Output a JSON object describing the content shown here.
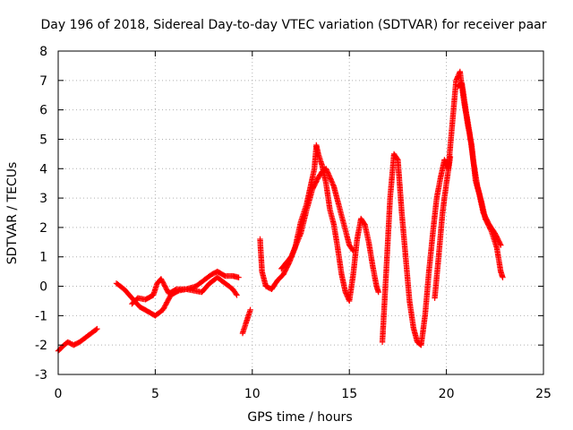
{
  "chart_data": {
    "type": "scatter",
    "title": "Day 196 of 2018, Sidereal Day-to-day VTEC variation (SDTVAR) for receiver paar",
    "xlabel": "GPS time / hours",
    "ylabel": "SDTVAR / TECUs",
    "xlim": [
      0,
      25
    ],
    "ylim": [
      -3,
      8
    ],
    "xticks": [
      "0",
      "5",
      "10",
      "15",
      "20",
      "25"
    ],
    "yticks": [
      "-3",
      "-2",
      "-1",
      "0",
      "1",
      "2",
      "3",
      "4",
      "5",
      "6",
      "7",
      "8"
    ],
    "grid": true,
    "marker": "plus",
    "color": "#ff0000",
    "series": [
      {
        "name": "SDTVAR",
        "segments": [
          {
            "points": [
              [
                0.0,
                -2.2
              ],
              [
                0.3,
                -2.0
              ],
              [
                0.5,
                -1.9
              ],
              [
                0.8,
                -2.0
              ],
              [
                1.1,
                -1.9
              ],
              [
                1.4,
                -1.75
              ],
              [
                1.7,
                -1.6
              ],
              [
                2.0,
                -1.45
              ]
            ]
          },
          {
            "points": [
              [
                3.0,
                0.1
              ],
              [
                3.4,
                -0.1
              ],
              [
                3.8,
                -0.4
              ],
              [
                4.2,
                -0.7
              ],
              [
                4.6,
                -0.85
              ],
              [
                5.0,
                -1.0
              ],
              [
                5.4,
                -0.8
              ],
              [
                5.8,
                -0.3
              ],
              [
                6.2,
                -0.15
              ],
              [
                6.6,
                -0.1
              ],
              [
                7.0,
                -0.15
              ],
              [
                7.4,
                -0.2
              ],
              [
                7.8,
                0.1
              ],
              [
                8.2,
                0.3
              ],
              [
                8.6,
                0.1
              ],
              [
                9.0,
                -0.1
              ],
              [
                9.2,
                -0.3
              ]
            ]
          },
          {
            "points": [
              [
                3.8,
                -0.6
              ],
              [
                4.1,
                -0.4
              ],
              [
                4.5,
                -0.45
              ],
              [
                4.9,
                -0.3
              ],
              [
                5.1,
                0.1
              ],
              [
                5.3,
                0.25
              ],
              [
                5.5,
                0.0
              ],
              [
                5.7,
                -0.25
              ],
              [
                6.1,
                -0.1
              ],
              [
                6.6,
                -0.1
              ],
              [
                7.1,
                0.0
              ],
              [
                7.5,
                0.2
              ],
              [
                7.9,
                0.4
              ],
              [
                8.2,
                0.5
              ],
              [
                8.6,
                0.35
              ],
              [
                9.0,
                0.35
              ],
              [
                9.3,
                0.3
              ]
            ]
          },
          {
            "points": [
              [
                9.5,
                -1.6
              ],
              [
                9.7,
                -1.2
              ],
              [
                9.9,
                -0.8
              ]
            ]
          },
          {
            "points": [
              [
                10.4,
                1.6
              ],
              [
                10.5,
                0.5
              ],
              [
                10.7,
                0.0
              ],
              [
                11.0,
                -0.1
              ],
              [
                11.3,
                0.2
              ],
              [
                11.6,
                0.4
              ],
              [
                11.9,
                0.8
              ],
              [
                12.2,
                1.3
              ],
              [
                12.5,
                2.2
              ],
              [
                12.8,
                2.8
              ],
              [
                13.0,
                3.4
              ],
              [
                13.2,
                4.0
              ],
              [
                13.3,
                4.8
              ],
              [
                13.4,
                4.5
              ],
              [
                13.6,
                4.1
              ],
              [
                13.8,
                3.5
              ],
              [
                14.0,
                2.6
              ],
              [
                14.2,
                2.1
              ],
              [
                14.4,
                1.3
              ],
              [
                14.6,
                0.4
              ],
              [
                14.8,
                -0.2
              ],
              [
                15.0,
                -0.5
              ],
              [
                15.2,
                0.4
              ],
              [
                15.4,
                1.6
              ],
              [
                15.6,
                2.3
              ],
              [
                15.8,
                2.1
              ],
              [
                16.0,
                1.5
              ],
              [
                16.2,
                0.7
              ],
              [
                16.4,
                0.0
              ],
              [
                16.5,
                -0.2
              ]
            ]
          },
          {
            "points": [
              [
                11.5,
                0.6
              ],
              [
                12.0,
                1.0
              ],
              [
                12.5,
                1.8
              ],
              [
                12.8,
                2.6
              ],
              [
                13.1,
                3.3
              ],
              [
                13.4,
                3.7
              ],
              [
                13.6,
                3.9
              ],
              [
                13.8,
                4.0
              ],
              [
                14.0,
                3.7
              ],
              [
                14.2,
                3.4
              ],
              [
                14.4,
                2.9
              ],
              [
                14.6,
                2.4
              ],
              [
                14.8,
                1.9
              ],
              [
                15.0,
                1.4
              ],
              [
                15.2,
                1.2
              ]
            ]
          },
          {
            "points": [
              [
                16.7,
                -1.9
              ],
              [
                16.9,
                0.5
              ],
              [
                17.1,
                3.0
              ],
              [
                17.3,
                4.5
              ],
              [
                17.5,
                4.3
              ],
              [
                17.7,
                2.5
              ],
              [
                17.9,
                1.0
              ],
              [
                18.1,
                -0.5
              ],
              [
                18.3,
                -1.4
              ],
              [
                18.5,
                -1.9
              ],
              [
                18.7,
                -2.0
              ],
              [
                18.9,
                -1.0
              ],
              [
                19.1,
                0.5
              ],
              [
                19.3,
                1.8
              ],
              [
                19.5,
                3.0
              ],
              [
                19.7,
                3.7
              ],
              [
                19.9,
                4.3
              ],
              [
                20.1,
                4.0
              ],
              [
                20.3,
                5.5
              ],
              [
                20.5,
                7.0
              ],
              [
                20.7,
                7.3
              ],
              [
                20.9,
                6.3
              ],
              [
                21.1,
                5.5
              ],
              [
                21.3,
                4.8
              ],
              [
                21.5,
                3.6
              ],
              [
                21.7,
                3.1
              ],
              [
                21.9,
                2.5
              ],
              [
                22.2,
                2.1
              ],
              [
                22.5,
                1.8
              ],
              [
                22.8,
                1.4
              ]
            ]
          },
          {
            "points": [
              [
                19.4,
                -0.4
              ],
              [
                19.6,
                1.0
              ],
              [
                19.8,
                2.5
              ],
              [
                20.0,
                3.5
              ],
              [
                20.2,
                4.4
              ]
            ]
          },
          {
            "points": [
              [
                20.6,
                6.8
              ],
              [
                20.8,
                6.9
              ],
              [
                21.0,
                6.0
              ],
              [
                21.2,
                5.2
              ],
              [
                21.4,
                4.2
              ],
              [
                21.6,
                3.4
              ],
              [
                21.8,
                2.9
              ],
              [
                22.0,
                2.3
              ],
              [
                22.3,
                1.9
              ],
              [
                22.6,
                1.3
              ],
              [
                22.8,
                0.5
              ],
              [
                22.9,
                0.3
              ]
            ]
          }
        ]
      }
    ]
  }
}
